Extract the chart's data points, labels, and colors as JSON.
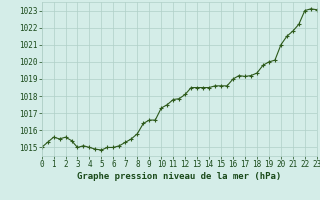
{
  "title": "Graphe pression niveau de la mer (hPa)",
  "x_values": [
    0,
    0.5,
    1,
    1.5,
    2,
    2.5,
    3,
    3.5,
    4,
    4.5,
    5,
    5.5,
    6,
    6.5,
    7,
    7.5,
    8,
    8.5,
    9,
    9.5,
    10,
    10.5,
    11,
    11.5,
    12,
    12.5,
    13,
    13.5,
    14,
    14.5,
    15,
    15.5,
    16,
    16.5,
    17,
    17.5,
    18,
    18.5,
    19,
    19.5,
    20,
    20.5,
    21,
    21.5,
    22,
    22.5,
    23
  ],
  "y_values": [
    1015.0,
    1015.3,
    1015.6,
    1015.5,
    1015.6,
    1015.4,
    1015.0,
    1015.1,
    1015.0,
    1014.9,
    1014.85,
    1015.0,
    1015.0,
    1015.1,
    1015.3,
    1015.5,
    1015.8,
    1016.4,
    1016.6,
    1016.6,
    1017.3,
    1017.5,
    1017.8,
    1017.85,
    1018.1,
    1018.5,
    1018.5,
    1018.5,
    1018.5,
    1018.6,
    1018.6,
    1018.6,
    1019.0,
    1019.2,
    1019.15,
    1019.2,
    1019.35,
    1019.8,
    1020.0,
    1020.1,
    1021.0,
    1021.5,
    1021.8,
    1022.2,
    1023.0,
    1023.1,
    1023.05
  ],
  "xlim": [
    0,
    23
  ],
  "ylim": [
    1014.5,
    1023.5
  ],
  "yticks": [
    1015,
    1016,
    1017,
    1018,
    1019,
    1020,
    1021,
    1022,
    1023
  ],
  "xticks": [
    0,
    1,
    2,
    3,
    4,
    5,
    6,
    7,
    8,
    9,
    10,
    11,
    12,
    13,
    14,
    15,
    16,
    17,
    18,
    19,
    20,
    21,
    22,
    23
  ],
  "line_color": "#2d5a1b",
  "marker_color": "#2d5a1b",
  "bg_color": "#d4ede8",
  "grid_color": "#b0d0c8",
  "title_color": "#1a4a1a",
  "tick_color": "#1a4a1a",
  "title_fontsize": 6.5,
  "tick_fontsize": 5.5,
  "line_width": 0.8,
  "marker_size": 2.2
}
